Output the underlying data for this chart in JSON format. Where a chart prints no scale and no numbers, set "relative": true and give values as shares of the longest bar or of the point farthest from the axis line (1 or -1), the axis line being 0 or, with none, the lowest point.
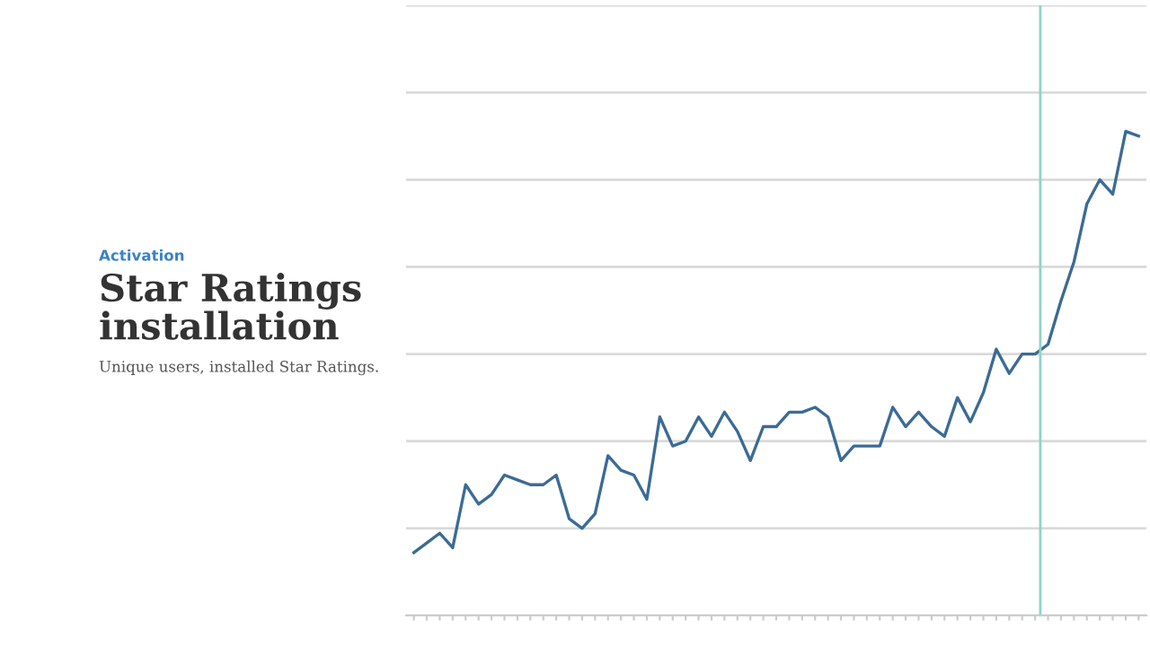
{
  "chart_data": {
    "type": "line",
    "title": "Star Ratings\ninstallation",
    "subtitle": "Unique users, installed Star Ratings.",
    "annotations": [
      "Activation"
    ],
    "relative": true,
    "grid": "y",
    "legend": false,
    "marker": "none",
    "line_style": "solid",
    "categories": [
      null,
      null,
      null,
      null,
      null,
      null,
      null,
      null,
      null,
      null,
      null,
      null,
      null,
      null,
      null,
      null,
      null,
      null,
      null,
      null,
      null,
      null,
      null,
      null,
      null,
      null,
      null,
      null,
      null,
      null,
      null,
      null,
      null,
      null,
      null,
      null,
      null,
      null,
      null,
      null,
      null,
      null,
      null,
      null,
      null,
      null,
      null,
      null,
      null,
      null,
      null,
      null,
      null,
      null,
      null,
      null,
      null
    ],
    "series": [
      {
        "color": "#3b6b95",
        "values": [
          0.13,
          0.15,
          0.17,
          0.14,
          0.27,
          0.23,
          0.25,
          0.29,
          0.28,
          0.27,
          0.27,
          0.29,
          0.2,
          0.18,
          0.21,
          0.33,
          0.3,
          0.29,
          0.24,
          0.41,
          0.35,
          0.36,
          0.41,
          0.37,
          0.42,
          0.38,
          0.32,
          0.39,
          0.39,
          0.42,
          0.42,
          0.43,
          0.41,
          0.32,
          0.35,
          0.35,
          0.35,
          0.43,
          0.39,
          0.42,
          0.39,
          0.37,
          0.45,
          0.4,
          0.46,
          0.55,
          0.5,
          0.54,
          0.54,
          0.56,
          0.65,
          0.73,
          0.85,
          0.9,
          0.87,
          1,
          0.99
        ]
      }
    ]
  }
}
